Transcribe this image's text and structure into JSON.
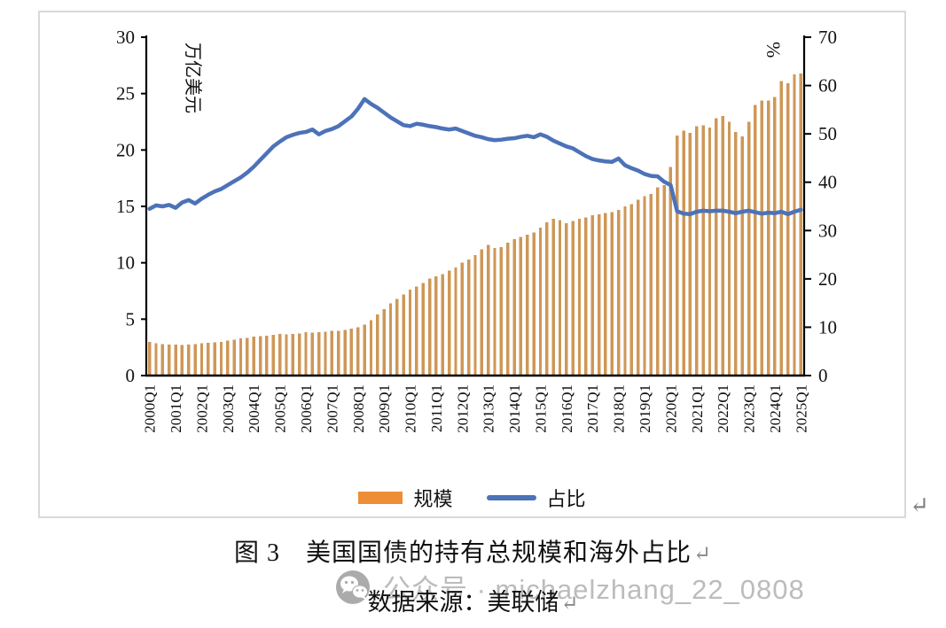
{
  "colors": {
    "bar": "#CE9757",
    "legend_bar": "#ED8D35",
    "line": "#4C72B8",
    "axis": "#000000",
    "watermark": "#bcbcbc"
  },
  "chart": {
    "y_left": {
      "title": "万亿美元",
      "ticks": [
        0,
        5,
        10,
        15,
        20,
        25,
        30
      ]
    },
    "y_right": {
      "title": "%",
      "ticks": [
        0,
        10,
        20,
        30,
        40,
        50,
        60,
        70
      ]
    }
  },
  "chart_data": {
    "type": "bar",
    "note": "combo chart: quarterly bars (left axis, trillion USD) + line (right axis, %)",
    "x_labels": [
      "2000Q1",
      "2001Q1",
      "2002Q1",
      "2003Q1",
      "2004Q1",
      "2005Q1",
      "2006Q1",
      "2007Q1",
      "2008Q1",
      "2009Q1",
      "2010Q1",
      "2011Q1",
      "2012Q1",
      "2013Q1",
      "2014Q1",
      "2015Q1",
      "2016Q1",
      "2017Q1",
      "2018Q1",
      "2019Q1",
      "2020Q1",
      "2021Q1",
      "2022Q1",
      "2023Q1",
      "2024Q1",
      "2025Q1"
    ],
    "x_frequency": "quarterly",
    "y_left_label": "万亿美元",
    "y_right_label": "%",
    "y_left_range": [
      0,
      30
    ],
    "y_right_range": [
      0,
      70
    ],
    "series": [
      {
        "name": "规模",
        "type": "bar",
        "axis": "left",
        "values": [
          3.0,
          2.85,
          2.8,
          2.75,
          2.75,
          2.7,
          2.75,
          2.8,
          2.85,
          2.9,
          2.95,
          3.0,
          3.1,
          3.2,
          3.3,
          3.35,
          3.45,
          3.5,
          3.55,
          3.6,
          3.7,
          3.65,
          3.7,
          3.75,
          3.85,
          3.8,
          3.85,
          3.9,
          3.95,
          3.95,
          4.05,
          4.15,
          4.3,
          4.5,
          4.9,
          5.4,
          5.9,
          6.4,
          6.8,
          7.2,
          7.6,
          7.9,
          8.2,
          8.6,
          8.8,
          9.0,
          9.3,
          9.6,
          10.0,
          10.3,
          10.7,
          11.2,
          11.6,
          11.3,
          11.4,
          11.8,
          12.1,
          12.3,
          12.5,
          12.7,
          13.1,
          13.6,
          13.9,
          13.8,
          13.5,
          13.7,
          13.9,
          14.0,
          14.2,
          14.3,
          14.4,
          14.5,
          14.7,
          15.0,
          15.2,
          15.6,
          15.9,
          16.1,
          16.7,
          16.9,
          18.5,
          21.3,
          21.7,
          21.5,
          22.1,
          22.2,
          22.0,
          22.8,
          23.0,
          22.5,
          21.6,
          21.2,
          22.5,
          24.0,
          24.4,
          24.4,
          24.7,
          26.1,
          25.9,
          26.7,
          26.8
        ]
      },
      {
        "name": "占比",
        "type": "line",
        "axis": "right",
        "values": [
          34.5,
          35.2,
          35.0,
          35.3,
          34.7,
          35.8,
          36.3,
          35.6,
          36.6,
          37.4,
          38.1,
          38.6,
          39.4,
          40.2,
          41.0,
          42.0,
          43.2,
          44.6,
          46.0,
          47.4,
          48.4,
          49.3,
          49.8,
          50.2,
          50.4,
          50.9,
          49.9,
          50.6,
          51.0,
          51.6,
          52.6,
          53.6,
          55.2,
          57.2,
          56.2,
          55.4,
          54.4,
          53.4,
          52.6,
          51.8,
          51.6,
          52.1,
          51.9,
          51.6,
          51.4,
          51.1,
          50.9,
          51.1,
          50.6,
          50.1,
          49.6,
          49.3,
          48.9,
          48.7,
          48.8,
          49.0,
          49.1,
          49.4,
          49.6,
          49.3,
          49.9,
          49.4,
          48.6,
          48.0,
          47.4,
          47.0,
          46.2,
          45.4,
          44.8,
          44.5,
          44.3,
          44.2,
          44.9,
          43.5,
          42.9,
          42.4,
          41.7,
          41.3,
          41.2,
          40.1,
          39.4,
          34.0,
          33.5,
          33.4,
          33.9,
          34.1,
          34.0,
          34.1,
          34.1,
          33.9,
          33.6,
          33.9,
          34.1,
          33.8,
          33.5,
          33.7,
          33.6,
          33.9,
          33.4,
          33.9,
          34.3
        ]
      }
    ],
    "title": "图 3　美国国债的持有总规模和海外占比",
    "legend_position": "bottom"
  },
  "legend": {
    "bar_label": "规模",
    "line_label": "占比"
  },
  "caption": {
    "title_line": "图 3　美国国债的持有总规模和海外占比",
    "source_line": "数据来源：美联储",
    "return_mark": "↵"
  },
  "watermark": {
    "text": "公众号 · michaelzhang_22_0808"
  }
}
